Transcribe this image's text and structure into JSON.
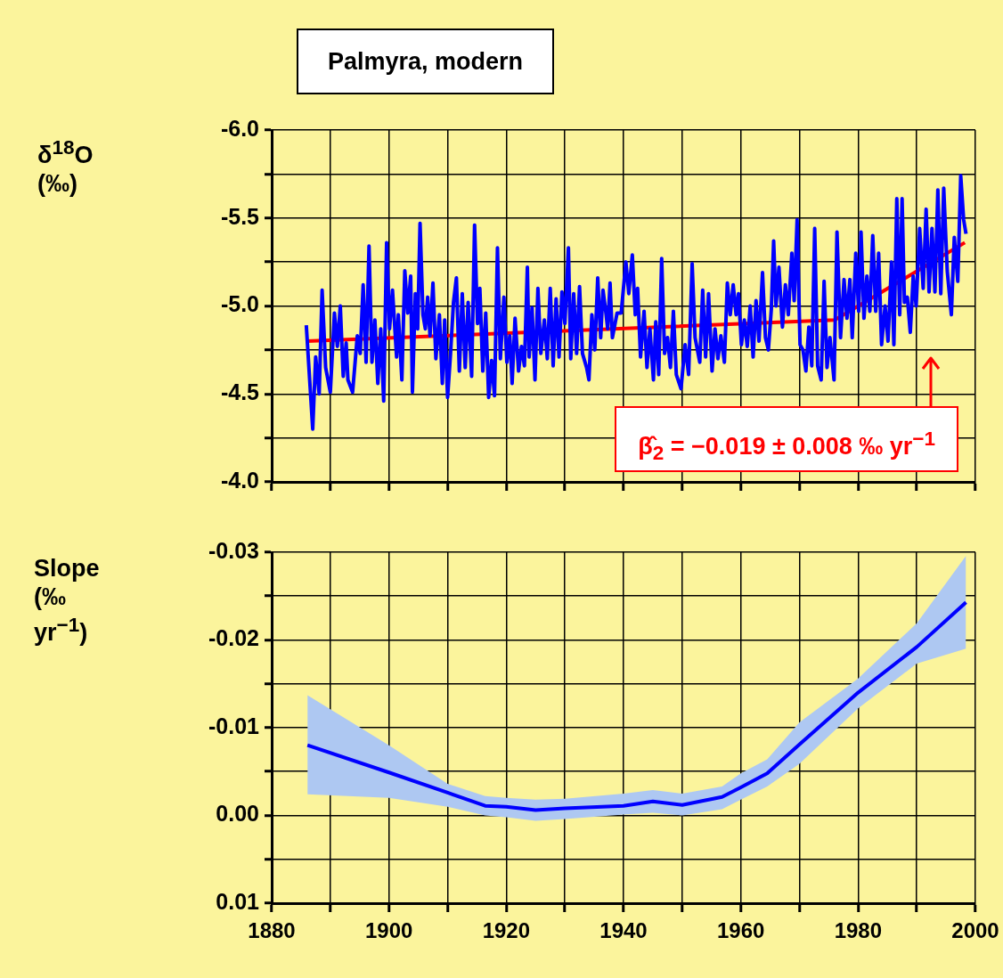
{
  "chart_data": [
    {
      "type": "line",
      "title": "Palmyra, modern",
      "ylabel": "δ$^{18}$O (‰)",
      "xlim": [
        1880,
        2000
      ],
      "xticks": [
        1880,
        {
          "value": 1890,
          "label": null
        },
        1900,
        {
          "value": 1910,
          "label": null
        },
        1920,
        {
          "value": 1930,
          "label": null
        },
        1940,
        {
          "value": 1950,
          "label": null
        },
        1960,
        {
          "value": 1970,
          "label": null
        },
        1980,
        {
          "value": 1990,
          "label": null
        },
        2000
      ],
      "ylim": [
        -4.0,
        -6.0
      ],
      "yticks": [
        {
          "value": -6,
          "label": "-6.0"
        },
        {
          "value": -5.75,
          "label": null
        },
        {
          "value": -5.5,
          "label": "-5.5"
        },
        {
          "value": -5.25,
          "label": null
        },
        {
          "value": -5,
          "label": "-5.0"
        },
        {
          "value": -4.75,
          "label": null
        },
        {
          "value": -4.5,
          "label": "-4.5"
        },
        {
          "value": -4.25,
          "label": null
        },
        {
          "value": -4,
          "label": "-4.0"
        }
      ],
      "tick_labels": "y",
      "grid": true,
      "legend": false,
      "annotations": [
        "β̂$_{2}$ = −0.019 ± 0.008 ‰ yr$^{−1}$"
      ],
      "series": [
        {
          "color": "#0000ff",
          "x": [
            1885.9,
            1887.0,
            1887.5,
            1888.1,
            1888.6,
            1889.2,
            1890.0,
            1890.7,
            1891.2,
            1891.7,
            1892.2,
            1892.7,
            1893.0,
            1893.8,
            1894.6,
            1895.1,
            1895.6,
            1896.1,
            1896.6,
            1897.1,
            1897.6,
            1898.1,
            1898.6,
            1899.1,
            1899.6,
            1900.1,
            1900.6,
            1901.3,
            1901.6,
            1902.2,
            1902.7,
            1903.2,
            1903.7,
            1904.0,
            1904.5,
            1904.9,
            1905.3,
            1905.8,
            1906.2,
            1906.6,
            1907.0,
            1907.5,
            1908.0,
            1908.6,
            1909.1,
            1909.5,
            1910.0,
            1910.5,
            1911.0,
            1911.5,
            1912.0,
            1912.5,
            1913.0,
            1913.5,
            1914.1,
            1914.6,
            1915.1,
            1915.5,
            1916.0,
            1916.5,
            1917.0,
            1917.5,
            1918.0,
            1918.5,
            1919.0,
            1919.6,
            1920.1,
            1920.6,
            1921.0,
            1921.5,
            1922.1,
            1922.6,
            1923.1,
            1923.6,
            1923.9,
            1924.4,
            1924.9,
            1925.4,
            1925.9,
            1926.5,
            1927.0,
            1927.5,
            1928.0,
            1928.5,
            1929.0,
            1929.5,
            1930.0,
            1930.6,
            1931.0,
            1931.5,
            1932.0,
            1932.5,
            1933.0,
            1933.7,
            1934.1,
            1934.6,
            1935.1,
            1935.6,
            1936.1,
            1936.5,
            1937.0,
            1937.3,
            1937.7,
            1938.1,
            1938.9,
            1939.6,
            1940.4,
            1940.9,
            1941.5,
            1942.0,
            1942.4,
            1942.9,
            1943.5,
            1944.0,
            1944.5,
            1945.1,
            1945.5,
            1946.0,
            1946.5,
            1947.0,
            1947.5,
            1948.0,
            1948.5,
            1949.0,
            1949.8,
            1950.5,
            1951.1,
            1951.7,
            1952.2,
            1953.0,
            1953.5,
            1954.0,
            1954.5,
            1955.1,
            1955.6,
            1956.1,
            1956.6,
            1957.2,
            1957.7,
            1958.2,
            1958.7,
            1959.2,
            1959.6,
            1960.1,
            1960.6,
            1961.1,
            1961.6,
            1962.1,
            1962.6,
            1963.1,
            1963.7,
            1964.2,
            1964.7,
            1965.2,
            1965.6,
            1966.0,
            1966.5,
            1967.1,
            1967.6,
            1968.1,
            1968.7,
            1969.1,
            1969.6,
            1970.1,
            1970.6,
            1971.1,
            1971.6,
            1972.1,
            1972.6,
            1973.1,
            1973.7,
            1974.2,
            1974.7,
            1975.2,
            1975.9,
            1976.4,
            1977.0,
            1977.6,
            1978.1,
            1978.6,
            1979.0,
            1979.6,
            1980.1,
            1980.5,
            1981.0,
            1981.5,
            1982.0,
            1982.5,
            1983.0,
            1983.5,
            1984.0,
            1984.6,
            1985.1,
            1985.7,
            1986.1,
            1986.6,
            1987.1,
            1987.5,
            1987.9,
            1988.4,
            1988.9,
            1989.4,
            1989.9,
            1990.5,
            1991.1,
            1991.6,
            1992.1,
            1992.6,
            1993.1,
            1993.6,
            1994.1,
            1994.6,
            1995.2,
            1995.9,
            1996.4,
            1997.0,
            1997.5,
            1998.0,
            1998.4
          ],
          "values": [
            -4.89,
            -4.3,
            -4.71,
            -4.5,
            -5.09,
            -4.65,
            -4.51,
            -4.96,
            -4.77,
            -5.0,
            -4.6,
            -4.79,
            -4.58,
            -4.51,
            -4.83,
            -4.73,
            -5.12,
            -4.68,
            -5.34,
            -4.68,
            -4.92,
            -4.56,
            -4.87,
            -4.46,
            -5.36,
            -4.87,
            -5.09,
            -4.71,
            -4.95,
            -4.58,
            -5.2,
            -4.96,
            -5.17,
            -4.51,
            -5.07,
            -4.87,
            -5.47,
            -4.95,
            -4.87,
            -5.05,
            -4.83,
            -5.13,
            -4.7,
            -4.95,
            -4.56,
            -4.92,
            -4.48,
            -4.73,
            -5.02,
            -5.16,
            -4.63,
            -5.07,
            -4.65,
            -5.02,
            -4.6,
            -5.46,
            -4.9,
            -5.1,
            -4.63,
            -4.96,
            -4.48,
            -4.69,
            -4.49,
            -5.33,
            -4.7,
            -5.05,
            -4.68,
            -4.83,
            -4.56,
            -4.93,
            -4.63,
            -4.77,
            -4.66,
            -5.22,
            -4.71,
            -4.99,
            -4.58,
            -5.1,
            -4.73,
            -4.92,
            -4.7,
            -5.1,
            -4.66,
            -5.04,
            -4.71,
            -5.08,
            -4.9,
            -5.33,
            -4.7,
            -5.07,
            -4.73,
            -5.11,
            -4.73,
            -4.65,
            -4.58,
            -4.95,
            -4.75,
            -5.16,
            -4.82,
            -5.09,
            -4.96,
            -4.87,
            -5.13,
            -4.82,
            -4.96,
            -4.96,
            -5.25,
            -5.07,
            -5.29,
            -4.95,
            -5.1,
            -4.71,
            -4.97,
            -4.65,
            -4.87,
            -4.58,
            -4.91,
            -4.61,
            -5.27,
            -4.73,
            -4.82,
            -4.65,
            -4.97,
            -4.61,
            -4.53,
            -4.78,
            -4.61,
            -5.24,
            -4.82,
            -4.68,
            -5.09,
            -4.71,
            -5.07,
            -4.63,
            -4.87,
            -4.7,
            -4.83,
            -4.68,
            -5.13,
            -4.95,
            -5.12,
            -4.95,
            -5.07,
            -4.78,
            -4.92,
            -4.77,
            -5.0,
            -4.71,
            -5.03,
            -4.8,
            -5.19,
            -4.82,
            -4.75,
            -4.98,
            -5.37,
            -5.0,
            -5.22,
            -4.88,
            -5.12,
            -4.95,
            -5.3,
            -5.03,
            -5.49,
            -4.78,
            -4.75,
            -4.63,
            -4.88,
            -4.66,
            -5.44,
            -4.66,
            -4.58,
            -5.14,
            -4.65,
            -4.82,
            -4.58,
            -5.42,
            -4.82,
            -5.15,
            -4.93,
            -5.15,
            -4.82,
            -5.3,
            -4.97,
            -5.42,
            -4.93,
            -5.17,
            -4.97,
            -5.4,
            -4.97,
            -5.3,
            -4.78,
            -5.0,
            -4.8,
            -5.25,
            -4.78,
            -5.61,
            -4.95,
            -5.61,
            -5.02,
            -5.05,
            -4.85,
            -5.17,
            -5.0,
            -5.44,
            -5.1,
            -5.55,
            -5.08,
            -5.44,
            -5.08,
            -5.66,
            -5.07,
            -5.67,
            -5.2,
            -4.95,
            -5.39,
            -5.14,
            -5.74,
            -5.49,
            -5.41
          ]
        },
        {
          "color": "#ff0000",
          "x": [
            1886,
            1976,
            1998.2
          ],
          "values": [
            -4.8,
            -4.92,
            -5.36
          ]
        }
      ]
    },
    {
      "type": "line",
      "ylabel": "Slope (‰ yr$^{−1}$)",
      "xlim": [
        1880,
        2000
      ],
      "xticks": [
        1880,
        {
          "value": 1890,
          "label": null
        },
        1900,
        {
          "value": 1910,
          "label": null
        },
        1920,
        {
          "value": 1930,
          "label": null
        },
        1940,
        {
          "value": 1950,
          "label": null
        },
        1960,
        {
          "value": 1970,
          "label": null
        },
        1980,
        {
          "value": 1990,
          "label": null
        },
        2000
      ],
      "ylim": [
        0.01,
        -0.03
      ],
      "yticks": [
        -0.03,
        {
          "value": -0.025,
          "label": null
        },
        -0.02,
        {
          "value": -0.015,
          "label": null
        },
        -0.01,
        {
          "value": -0.005,
          "label": null
        },
        {
          "value": 0,
          "label": "0.00"
        },
        {
          "value": 0.005,
          "label": null
        },
        0.01
      ],
      "grid": true,
      "legend": false,
      "series": [
        {
          "color": "#0000ff",
          "x": [
            1886.1,
            1900,
            1910,
            1916.4,
            1920,
            1925,
            1930,
            1940,
            1945,
            1950,
            1956.8,
            1960,
            1964.5,
            1970,
            1980,
            1990,
            1998.4
          ],
          "values": [
            -0.008,
            -0.0049,
            -0.0026,
            -0.0011,
            -0.001,
            -0.0006,
            -0.0008,
            -0.0011,
            -0.0016,
            -0.0012,
            -0.0021,
            -0.0032,
            -0.0048,
            -0.0081,
            -0.014,
            -0.0192,
            -0.0243
          ],
          "lower": [
            -0.0137,
            -0.008,
            -0.0036,
            -0.0022,
            -0.002,
            -0.0018,
            -0.0019,
            -0.0025,
            -0.0029,
            -0.0025,
            -0.0033,
            -0.0048,
            -0.0064,
            -0.0106,
            -0.0156,
            -0.0219,
            -0.0296
          ],
          "upper": [
            -0.0024,
            -0.002,
            -0.001,
            0.0,
            0.0002,
            0.0006,
            0.0004,
            -0.0001,
            -0.0003,
            0.0,
            -0.0007,
            -0.0018,
            -0.0033,
            -0.0059,
            -0.0122,
            -0.0173,
            -0.019
          ]
        }
      ]
    }
  ]
}
